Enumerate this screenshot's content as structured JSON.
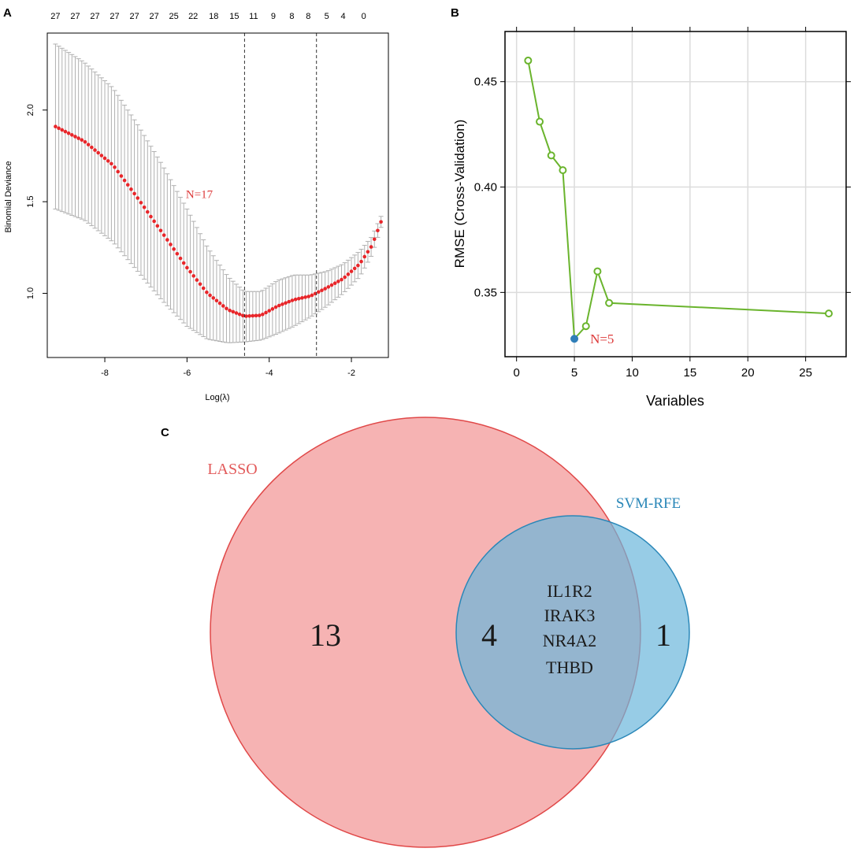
{
  "chart_data": [
    {
      "panel": "A",
      "type": "scatter",
      "xlabel": "Log(λ)",
      "ylabel": "Binomial Deviance",
      "xlim": [
        -9.4,
        -1.1
      ],
      "ylim": [
        0.65,
        2.42
      ],
      "x_ticks": [
        -8,
        -6,
        -4,
        -2
      ],
      "x_tick_labels": [
        "-8",
        "-6",
        "-4",
        "-2"
      ],
      "y_ticks": [
        1.0,
        1.5,
        2.0
      ],
      "y_tick_labels": [
        "1.0",
        "1.5",
        "2.0"
      ],
      "top_axis_labels": [
        "27",
        "27",
        "27",
        "27",
        "27",
        "27",
        "25",
        "22",
        "18",
        "15",
        "11",
        "9",
        "8",
        "8",
        "5",
        "4",
        "0"
      ],
      "top_axis_x": [
        -9.2,
        -8.72,
        -8.24,
        -7.76,
        -7.28,
        -6.8,
        -6.32,
        -5.85,
        -5.35,
        -4.85,
        -4.38,
        -3.9,
        -3.45,
        -3.05,
        -2.6,
        -2.2,
        -1.7
      ],
      "vlines": [
        -4.6,
        -2.85
      ],
      "annotation": "N=17",
      "annotation_x": -5.7,
      "annotation_y": 1.52,
      "series": [
        {
          "name": "cv deviance",
          "x_start": -9.2,
          "x_end": -1.28,
          "n_points": 100,
          "points": [
            [
              -9.2,
              1.91
            ],
            [
              -8.5,
              1.83
            ],
            [
              -7.8,
              1.7
            ],
            [
              -7.2,
              1.52
            ],
            [
              -6.6,
              1.33
            ],
            [
              -6.0,
              1.14
            ],
            [
              -5.5,
              1.0
            ],
            [
              -5.0,
              0.91
            ],
            [
              -4.6,
              0.875
            ],
            [
              -4.2,
              0.88
            ],
            [
              -3.8,
              0.93
            ],
            [
              -3.4,
              0.965
            ],
            [
              -3.0,
              0.985
            ],
            [
              -2.6,
              1.03
            ],
            [
              -2.2,
              1.08
            ],
            [
              -1.8,
              1.16
            ],
            [
              -1.5,
              1.26
            ],
            [
              -1.28,
              1.39
            ]
          ],
          "band_lower_points": [
            [
              -9.2,
              1.46
            ],
            [
              -8.5,
              1.4
            ],
            [
              -7.8,
              1.28
            ],
            [
              -7.2,
              1.12
            ],
            [
              -6.6,
              0.96
            ],
            [
              -6.0,
              0.82
            ],
            [
              -5.5,
              0.75
            ],
            [
              -5.0,
              0.73
            ],
            [
              -4.6,
              0.735
            ],
            [
              -4.2,
              0.745
            ],
            [
              -3.8,
              0.78
            ],
            [
              -3.4,
              0.82
            ],
            [
              -3.0,
              0.87
            ],
            [
              -2.6,
              0.93
            ],
            [
              -2.2,
              1.0
            ],
            [
              -1.8,
              1.09
            ],
            [
              -1.5,
              1.21
            ],
            [
              -1.28,
              1.36
            ]
          ],
          "band_upper_points": [
            [
              -9.2,
              2.36
            ],
            [
              -8.5,
              2.26
            ],
            [
              -7.8,
              2.12
            ],
            [
              -7.2,
              1.92
            ],
            [
              -6.6,
              1.7
            ],
            [
              -6.0,
              1.46
            ],
            [
              -5.5,
              1.25
            ],
            [
              -5.0,
              1.09
            ],
            [
              -4.6,
              1.01
            ],
            [
              -4.2,
              1.01
            ],
            [
              -3.8,
              1.07
            ],
            [
              -3.4,
              1.1
            ],
            [
              -3.0,
              1.1
            ],
            [
              -2.6,
              1.12
            ],
            [
              -2.2,
              1.16
            ],
            [
              -1.8,
              1.23
            ],
            [
              -1.5,
              1.31
            ],
            [
              -1.28,
              1.42
            ]
          ]
        }
      ]
    },
    {
      "panel": "B",
      "type": "line",
      "xlabel": "Variables",
      "ylabel": "RMSE (Cross-Validation)",
      "xlim": [
        -1.0,
        28.5
      ],
      "ylim": [
        0.3195,
        0.4738
      ],
      "x_ticks": [
        0,
        5,
        10,
        15,
        20,
        25
      ],
      "x_tick_labels": [
        "0",
        "5",
        "10",
        "15",
        "20",
        "25"
      ],
      "y_ticks": [
        0.35,
        0.4,
        0.45
      ],
      "y_tick_labels": [
        "0.35",
        "0.40",
        "0.45"
      ],
      "grid": true,
      "annotation": "N=5",
      "series": [
        {
          "name": "RMSE",
          "x": [
            1,
            2,
            3,
            4,
            5,
            6,
            7,
            8,
            27
          ],
          "values": [
            0.46,
            0.431,
            0.415,
            0.408,
            0.328,
            0.334,
            0.36,
            0.345,
            0.34
          ],
          "highlight_x": 5
        }
      ],
      "colors": {
        "line": "#6ab42d",
        "highlight": "#2f7eb8",
        "annotation": "#dd3a3a",
        "grid": "#dcdcdc"
      }
    },
    {
      "panel": "C",
      "type": "venn",
      "sets": [
        {
          "name": "LASSO",
          "count_only": 13,
          "color": "#f08080"
        },
        {
          "name": "SVM-RFE",
          "count_only": 1,
          "color": "#6bb6dc"
        }
      ],
      "overlap_count": 4,
      "overlap_genes": [
        "IL1R2",
        "IRAK3",
        "NR4A2",
        "THBD"
      ]
    }
  ],
  "colors": {
    "lasso_point": "#e8262a",
    "errorbar": "#b0b0b0",
    "vline": "#333333",
    "annotation_red": "#dd3a3a",
    "lasso_label": "#e25a5a",
    "svm_label": "#2a87b8"
  }
}
